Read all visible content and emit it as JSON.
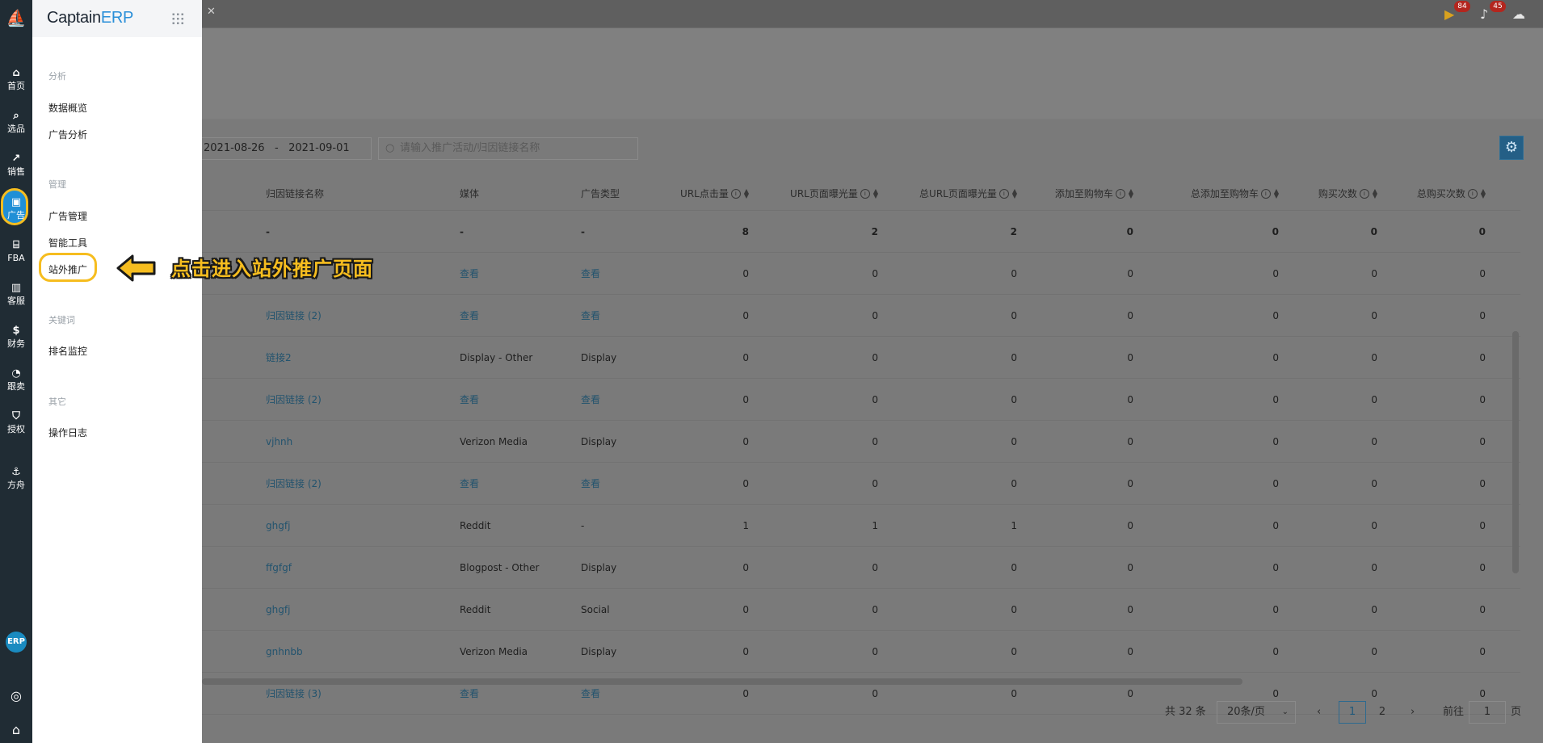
{
  "rail": {
    "items": [
      {
        "label": "首页",
        "icon": "home-icon"
      },
      {
        "label": "选品",
        "icon": "search-icon"
      },
      {
        "label": "销售",
        "icon": "trend-chart-icon"
      },
      {
        "label": "广告",
        "icon": "ad-icon"
      },
      {
        "label": "FBA",
        "icon": "warehouse-icon"
      },
      {
        "label": "客服",
        "icon": "support-icon"
      },
      {
        "label": "财务",
        "icon": "dollar-icon"
      },
      {
        "label": "跟卖",
        "icon": "pie-chart-icon"
      },
      {
        "label": "授权",
        "icon": "shield-icon"
      },
      {
        "label": "方舟",
        "icon": "ark-icon"
      }
    ],
    "erp_badge": "ERP"
  },
  "menu": {
    "brand_main": "Captain",
    "brand_accent": "ERP",
    "sections": [
      {
        "title": "分析",
        "items": [
          "数据概览",
          "广告分析"
        ]
      },
      {
        "title": "管理",
        "items": [
          "广告管理",
          "智能工具",
          "站外推广"
        ]
      },
      {
        "title": "关键词",
        "items": [
          "排名监控"
        ]
      },
      {
        "title": "其它",
        "items": [
          "操作日志"
        ]
      }
    ]
  },
  "annotation": {
    "text": "点击进入站外推广页面"
  },
  "header": {
    "badge_flag": "84",
    "badge_bell": "45"
  },
  "toolbar": {
    "date_start": "2021-08-26",
    "date_sep": "-",
    "date_end": "2021-09-01",
    "search_placeholder": "请输入推广活动/归因链接名称"
  },
  "table": {
    "columns": [
      "归因链接名称",
      "媒体",
      "广告类型",
      "URL点击量",
      "URL页面曝光量",
      "总URL页面曝光量",
      "添加至购物车",
      "总添加至购物车",
      "购买次数",
      "总购买次数"
    ],
    "total": [
      "-",
      "-",
      "-",
      "8",
      "2",
      "2",
      "0",
      "0",
      "0",
      "0"
    ],
    "rows": [
      [
        "",
        "查看",
        "查看",
        "0",
        "0",
        "0",
        "0",
        "0",
        "0",
        "0"
      ],
      [
        "归因链接 (2)",
        "查看",
        "查看",
        "0",
        "0",
        "0",
        "0",
        "0",
        "0",
        "0"
      ],
      [
        "链接2",
        "Display - Other",
        "Display",
        "0",
        "0",
        "0",
        "0",
        "0",
        "0",
        "0"
      ],
      [
        "归因链接 (2)",
        "查看",
        "查看",
        "0",
        "0",
        "0",
        "0",
        "0",
        "0",
        "0"
      ],
      [
        "vjhnh",
        "Verizon Media",
        "Display",
        "0",
        "0",
        "0",
        "0",
        "0",
        "0",
        "0"
      ],
      [
        "归因链接 (2)",
        "查看",
        "查看",
        "0",
        "0",
        "0",
        "0",
        "0",
        "0",
        "0"
      ],
      [
        "ghgfj",
        "Reddit",
        "-",
        "1",
        "1",
        "1",
        "0",
        "0",
        "0",
        "0"
      ],
      [
        "ffgfgf",
        "Blogpost - Other",
        "Display",
        "0",
        "0",
        "0",
        "0",
        "0",
        "0",
        "0"
      ],
      [
        "ghgfj",
        "Reddit",
        "Social",
        "0",
        "0",
        "0",
        "0",
        "0",
        "0",
        "0"
      ],
      [
        "gnhnbb",
        "Verizon Media",
        "Display",
        "0",
        "0",
        "0",
        "0",
        "0",
        "0",
        "0"
      ],
      [
        "归因链接 (3)",
        "查看",
        "查看",
        "0",
        "0",
        "0",
        "0",
        "0",
        "0",
        "0"
      ]
    ]
  },
  "pagination": {
    "total": "共 32 条",
    "page_size": "20条/页",
    "pages": [
      "1",
      "2"
    ],
    "goto_label": "前往",
    "goto_value": "1",
    "goto_suffix": "页"
  }
}
